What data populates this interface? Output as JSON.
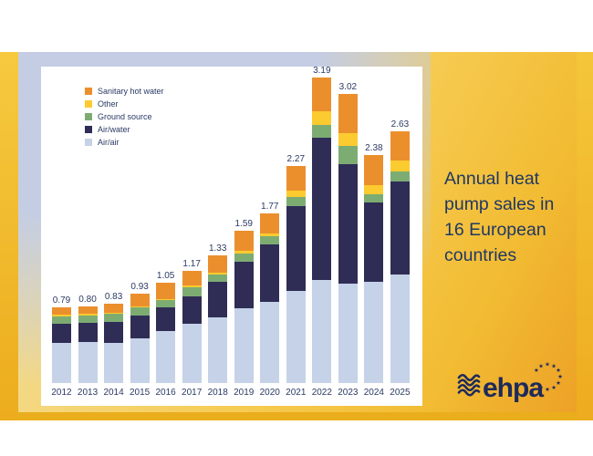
{
  "slide": {
    "title_lines": [
      "Annual heat",
      "pump sales in",
      "16 European",
      "countries"
    ],
    "logo_text": "ehpa"
  },
  "colors": {
    "frame_gold": "#F2BC33",
    "backdrop_blue": "#C4CDE3",
    "panel_bg": "#FFFFFF",
    "title_text": "#1F3864",
    "label_text": "#2B3A64",
    "logo_navy": "#1E2A5A"
  },
  "chart_data": {
    "type": "bar",
    "stacked": true,
    "title": "Annual heat pump sales in 16 European countries",
    "xlabel": "",
    "ylabel": "",
    "gridlines": false,
    "y_axis_visible": false,
    "legend_position": "top-left",
    "categories": [
      "2012",
      "2013",
      "2014",
      "2015",
      "2016",
      "2017",
      "2018",
      "2019",
      "2020",
      "2021",
      "2022",
      "2023",
      "2024",
      "2025"
    ],
    "series": [
      {
        "name": "Air/air",
        "color": "#C5D2E8",
        "values": [
          0.42,
          0.43,
          0.42,
          0.47,
          0.54,
          0.62,
          0.69,
          0.78,
          0.85,
          0.96,
          1.08,
          1.04,
          1.06,
          1.13
        ]
      },
      {
        "name": "Air/water",
        "color": "#2F2D56",
        "values": [
          0.2,
          0.2,
          0.22,
          0.24,
          0.25,
          0.29,
          0.37,
          0.49,
          0.6,
          0.89,
          1.48,
          1.25,
          0.83,
          0.98
        ]
      },
      {
        "name": "Ground source",
        "color": "#7DAC73",
        "values": [
          0.08,
          0.08,
          0.08,
          0.08,
          0.08,
          0.09,
          0.07,
          0.08,
          0.08,
          0.09,
          0.14,
          0.19,
          0.08,
          0.1
        ]
      },
      {
        "name": "Other",
        "color": "#FCCB2F",
        "values": [
          0.01,
          0.01,
          0.01,
          0.01,
          0.01,
          0.02,
          0.02,
          0.03,
          0.03,
          0.07,
          0.14,
          0.13,
          0.1,
          0.11
        ]
      },
      {
        "name": "Sanitary hot water",
        "color": "#EB8F2D",
        "values": [
          0.08,
          0.08,
          0.1,
          0.13,
          0.17,
          0.15,
          0.18,
          0.21,
          0.21,
          0.26,
          0.35,
          0.41,
          0.31,
          0.31
        ]
      }
    ],
    "bar_total_labels": [
      "0.79",
      "0.80",
      "0.83",
      "0.93",
      "1.05",
      "1.17",
      "1.33",
      "1.59",
      "1.77",
      "2.27",
      "3.19",
      "3.02",
      "2.38",
      "2.63"
    ],
    "legend_items_top_to_bottom": [
      "Sanitary hot water",
      "Other",
      "Ground source",
      "Air/water",
      "Air/air"
    ]
  }
}
